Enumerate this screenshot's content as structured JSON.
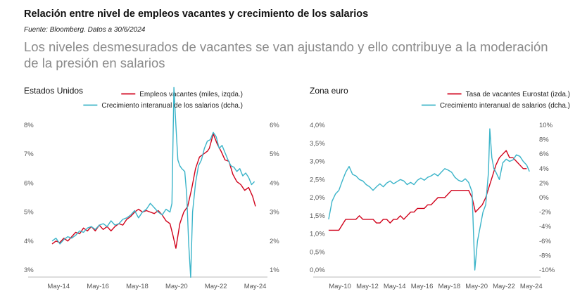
{
  "header": {
    "title": "Relación entre nivel de empleos vacantes y crecimiento de los salarios",
    "source": "Fuente: Bloomberg. Datos a 30/6/2024",
    "subtitle": "Los niveles desmesurados de vacantes se van ajustando y ello contribuye a la moderación de la presión en salarios"
  },
  "colors": {
    "red": "#d0021b",
    "teal": "#3bb4c9",
    "axis": "#bbbbbb"
  },
  "chart_data": [
    {
      "type": "line",
      "title": "Estados Unidos",
      "x_ticks": [
        "May-14",
        "May-16",
        "May-18",
        "May-20",
        "May-22",
        "May-24"
      ],
      "left_axis": {
        "ticks": [
          "3%",
          "4%",
          "5%",
          "6%",
          "7%",
          "8%"
        ],
        "range": [
          3,
          8
        ]
      },
      "right_axis": {
        "ticks": [
          "1%",
          "2%",
          "3%",
          "4%",
          "5%",
          "6%"
        ],
        "range": [
          1,
          6
        ]
      },
      "x_range": [
        2013.5,
        2024.6
      ],
      "series": [
        {
          "name": "Empleos vacantes (miles, izqda.)",
          "axis": "left",
          "color": "red",
          "points": [
            [
              2014.0,
              3.9
            ],
            [
              2014.2,
              4.0
            ],
            [
              2014.4,
              3.95
            ],
            [
              2014.6,
              4.1
            ],
            [
              2014.8,
              4.0
            ],
            [
              2015.0,
              4.15
            ],
            [
              2015.2,
              4.3
            ],
            [
              2015.4,
              4.25
            ],
            [
              2015.6,
              4.45
            ],
            [
              2015.8,
              4.35
            ],
            [
              2016.0,
              4.5
            ],
            [
              2016.2,
              4.35
            ],
            [
              2016.4,
              4.55
            ],
            [
              2016.6,
              4.4
            ],
            [
              2016.8,
              4.5
            ],
            [
              2017.0,
              4.35
            ],
            [
              2017.2,
              4.5
            ],
            [
              2017.4,
              4.6
            ],
            [
              2017.6,
              4.55
            ],
            [
              2017.8,
              4.75
            ],
            [
              2018.0,
              4.85
            ],
            [
              2018.2,
              5.0
            ],
            [
              2018.4,
              5.1
            ],
            [
              2018.6,
              5.0
            ],
            [
              2018.8,
              5.05
            ],
            [
              2019.0,
              5.0
            ],
            [
              2019.2,
              4.95
            ],
            [
              2019.4,
              5.05
            ],
            [
              2019.6,
              4.9
            ],
            [
              2019.8,
              4.7
            ],
            [
              2020.0,
              4.6
            ],
            [
              2020.15,
              4.2
            ],
            [
              2020.3,
              3.75
            ],
            [
              2020.5,
              4.6
            ],
            [
              2020.7,
              5.0
            ],
            [
              2020.9,
              5.2
            ],
            [
              2021.1,
              5.8
            ],
            [
              2021.3,
              6.5
            ],
            [
              2021.5,
              6.9
            ],
            [
              2021.7,
              7.0
            ],
            [
              2021.9,
              7.1
            ],
            [
              2022.0,
              7.2
            ],
            [
              2022.2,
              7.7
            ],
            [
              2022.4,
              7.35
            ],
            [
              2022.6,
              7.1
            ],
            [
              2022.8,
              6.8
            ],
            [
              2023.0,
              6.75
            ],
            [
              2023.2,
              6.3
            ],
            [
              2023.4,
              6.05
            ],
            [
              2023.6,
              5.95
            ],
            [
              2023.8,
              5.75
            ],
            [
              2024.0,
              5.85
            ],
            [
              2024.2,
              5.55
            ],
            [
              2024.35,
              5.2
            ]
          ]
        },
        {
          "name": "Crecimiento interanual de los salarios (dcha.)",
          "axis": "right",
          "color": "teal",
          "points": [
            [
              2014.0,
              2.0
            ],
            [
              2014.2,
              2.1
            ],
            [
              2014.4,
              1.9
            ],
            [
              2014.6,
              2.05
            ],
            [
              2014.8,
              2.15
            ],
            [
              2015.0,
              2.1
            ],
            [
              2015.2,
              2.2
            ],
            [
              2015.4,
              2.35
            ],
            [
              2015.6,
              2.3
            ],
            [
              2015.8,
              2.45
            ],
            [
              2016.0,
              2.5
            ],
            [
              2016.2,
              2.4
            ],
            [
              2016.4,
              2.55
            ],
            [
              2016.6,
              2.6
            ],
            [
              2016.8,
              2.5
            ],
            [
              2017.0,
              2.7
            ],
            [
              2017.2,
              2.55
            ],
            [
              2017.4,
              2.6
            ],
            [
              2017.6,
              2.75
            ],
            [
              2017.8,
              2.8
            ],
            [
              2018.0,
              2.9
            ],
            [
              2018.2,
              3.05
            ],
            [
              2018.4,
              2.8
            ],
            [
              2018.6,
              3.0
            ],
            [
              2018.8,
              3.1
            ],
            [
              2019.0,
              3.3
            ],
            [
              2019.2,
              3.15
            ],
            [
              2019.4,
              3.0
            ],
            [
              2019.6,
              2.9
            ],
            [
              2019.8,
              3.1
            ],
            [
              2020.0,
              3.0
            ],
            [
              2020.1,
              3.3
            ],
            [
              2020.2,
              7.3
            ],
            [
              2020.3,
              6.0
            ],
            [
              2020.4,
              4.8
            ],
            [
              2020.5,
              4.6
            ],
            [
              2020.6,
              4.5
            ],
            [
              2020.75,
              4.4
            ],
            [
              2020.85,
              3.6
            ],
            [
              2020.95,
              1.9
            ],
            [
              2021.05,
              0.75
            ],
            [
              2021.15,
              3.0
            ],
            [
              2021.3,
              4.0
            ],
            [
              2021.45,
              4.6
            ],
            [
              2021.6,
              4.8
            ],
            [
              2021.75,
              5.2
            ],
            [
              2021.9,
              5.45
            ],
            [
              2022.05,
              5.5
            ],
            [
              2022.2,
              5.75
            ],
            [
              2022.35,
              5.6
            ],
            [
              2022.5,
              5.2
            ],
            [
              2022.65,
              5.3
            ],
            [
              2022.8,
              5.05
            ],
            [
              2022.95,
              4.8
            ],
            [
              2023.1,
              4.6
            ],
            [
              2023.25,
              4.55
            ],
            [
              2023.4,
              4.4
            ],
            [
              2023.55,
              4.5
            ],
            [
              2023.7,
              4.25
            ],
            [
              2023.85,
              4.35
            ],
            [
              2024.0,
              4.2
            ],
            [
              2024.15,
              3.95
            ],
            [
              2024.3,
              4.05
            ]
          ]
        }
      ]
    },
    {
      "type": "line",
      "title": "Zona euro",
      "x_ticks": [
        "May-10",
        "May-12",
        "May-14",
        "May-16",
        "May-18",
        "May-20",
        "May-22",
        "May-24"
      ],
      "left_axis": {
        "ticks": [
          "0,0%",
          "0,5%",
          "1,0%",
          "1,5%",
          "2,0%",
          "2,5%",
          "3,0%",
          "3,5%",
          "4,0%"
        ],
        "range": [
          0,
          4
        ]
      },
      "right_axis": {
        "ticks": [
          "-10%",
          "-8%",
          "-6%",
          "-4%",
          "-2%",
          "0%",
          "2%",
          "4%",
          "6%",
          "8%",
          "10%"
        ],
        "range": [
          -10,
          10
        ]
      },
      "x_range": [
        2009.4,
        2024.5
      ],
      "series": [
        {
          "name": "Tasa de vacantes Eurostat (izda.)",
          "axis": "left",
          "color": "red",
          "points": [
            [
              2009.5,
              1.1
            ],
            [
              2010.0,
              1.1
            ],
            [
              2010.25,
              1.1
            ],
            [
              2010.5,
              1.25
            ],
            [
              2010.75,
              1.4
            ],
            [
              2011.0,
              1.4
            ],
            [
              2011.25,
              1.4
            ],
            [
              2011.5,
              1.4
            ],
            [
              2011.75,
              1.5
            ],
            [
              2012.0,
              1.4
            ],
            [
              2012.25,
              1.4
            ],
            [
              2012.5,
              1.4
            ],
            [
              2012.75,
              1.4
            ],
            [
              2013.0,
              1.3
            ],
            [
              2013.25,
              1.3
            ],
            [
              2013.5,
              1.4
            ],
            [
              2013.75,
              1.4
            ],
            [
              2014.0,
              1.3
            ],
            [
              2014.25,
              1.4
            ],
            [
              2014.5,
              1.4
            ],
            [
              2014.75,
              1.5
            ],
            [
              2015.0,
              1.4
            ],
            [
              2015.25,
              1.5
            ],
            [
              2015.5,
              1.6
            ],
            [
              2015.75,
              1.6
            ],
            [
              2016.0,
              1.7
            ],
            [
              2016.25,
              1.7
            ],
            [
              2016.5,
              1.7
            ],
            [
              2016.75,
              1.8
            ],
            [
              2017.0,
              1.8
            ],
            [
              2017.25,
              1.9
            ],
            [
              2017.5,
              2.0
            ],
            [
              2017.75,
              2.0
            ],
            [
              2018.0,
              2.0
            ],
            [
              2018.25,
              2.1
            ],
            [
              2018.5,
              2.2
            ],
            [
              2018.75,
              2.2
            ],
            [
              2019.0,
              2.2
            ],
            [
              2019.25,
              2.2
            ],
            [
              2019.5,
              2.2
            ],
            [
              2019.75,
              2.2
            ],
            [
              2020.0,
              2.0
            ],
            [
              2020.25,
              1.6
            ],
            [
              2020.5,
              1.7
            ],
            [
              2020.75,
              1.8
            ],
            [
              2021.0,
              2.0
            ],
            [
              2021.25,
              2.3
            ],
            [
              2021.5,
              2.6
            ],
            [
              2021.75,
              2.9
            ],
            [
              2022.0,
              3.1
            ],
            [
              2022.25,
              3.2
            ],
            [
              2022.5,
              3.3
            ],
            [
              2022.75,
              3.1
            ],
            [
              2023.0,
              3.1
            ],
            [
              2023.25,
              3.0
            ],
            [
              2023.5,
              2.9
            ],
            [
              2023.75,
              2.8
            ],
            [
              2024.0,
              2.8
            ]
          ]
        },
        {
          "name": "Crecimiento interanual de salarios (dcha.)",
          "axis": "right",
          "color": "teal",
          "points": [
            [
              2009.5,
              -3.0
            ],
            [
              2009.75,
              -0.5
            ],
            [
              2010.0,
              0.5
            ],
            [
              2010.25,
              1.0
            ],
            [
              2010.5,
              2.3
            ],
            [
              2010.75,
              3.5
            ],
            [
              2011.0,
              4.3
            ],
            [
              2011.25,
              3.2
            ],
            [
              2011.5,
              3.0
            ],
            [
              2011.75,
              2.5
            ],
            [
              2012.0,
              2.3
            ],
            [
              2012.25,
              1.8
            ],
            [
              2012.5,
              1.5
            ],
            [
              2012.75,
              1.0
            ],
            [
              2013.0,
              1.5
            ],
            [
              2013.25,
              1.9
            ],
            [
              2013.5,
              1.5
            ],
            [
              2013.75,
              2.0
            ],
            [
              2014.0,
              2.3
            ],
            [
              2014.25,
              1.9
            ],
            [
              2014.5,
              2.2
            ],
            [
              2014.75,
              2.5
            ],
            [
              2015.0,
              2.3
            ],
            [
              2015.25,
              1.8
            ],
            [
              2015.5,
              2.1
            ],
            [
              2015.75,
              1.8
            ],
            [
              2016.0,
              2.4
            ],
            [
              2016.25,
              2.7
            ],
            [
              2016.5,
              2.4
            ],
            [
              2016.75,
              2.8
            ],
            [
              2017.0,
              3.0
            ],
            [
              2017.25,
              3.3
            ],
            [
              2017.5,
              3.0
            ],
            [
              2017.75,
              3.5
            ],
            [
              2018.0,
              4.0
            ],
            [
              2018.25,
              3.8
            ],
            [
              2018.5,
              3.5
            ],
            [
              2018.75,
              2.8
            ],
            [
              2019.0,
              2.4
            ],
            [
              2019.25,
              2.2
            ],
            [
              2019.5,
              2.6
            ],
            [
              2019.75,
              2.1
            ],
            [
              2020.0,
              0.8
            ],
            [
              2020.2,
              -10.0
            ],
            [
              2020.4,
              -6.0
            ],
            [
              2020.6,
              -4.0
            ],
            [
              2020.8,
              -2.0
            ],
            [
              2021.0,
              -1.0
            ],
            [
              2021.2,
              3.5
            ],
            [
              2021.3,
              9.5
            ],
            [
              2021.45,
              5.5
            ],
            [
              2021.6,
              4.0
            ],
            [
              2021.75,
              3.5
            ],
            [
              2022.0,
              2.5
            ],
            [
              2022.25,
              4.8
            ],
            [
              2022.5,
              5.3
            ],
            [
              2022.75,
              5.0
            ],
            [
              2023.0,
              5.2
            ],
            [
              2023.25,
              5.9
            ],
            [
              2023.5,
              5.7
            ],
            [
              2023.75,
              5.0
            ],
            [
              2024.0,
              4.5
            ],
            [
              2024.2,
              3.6
            ]
          ]
        }
      ]
    }
  ]
}
